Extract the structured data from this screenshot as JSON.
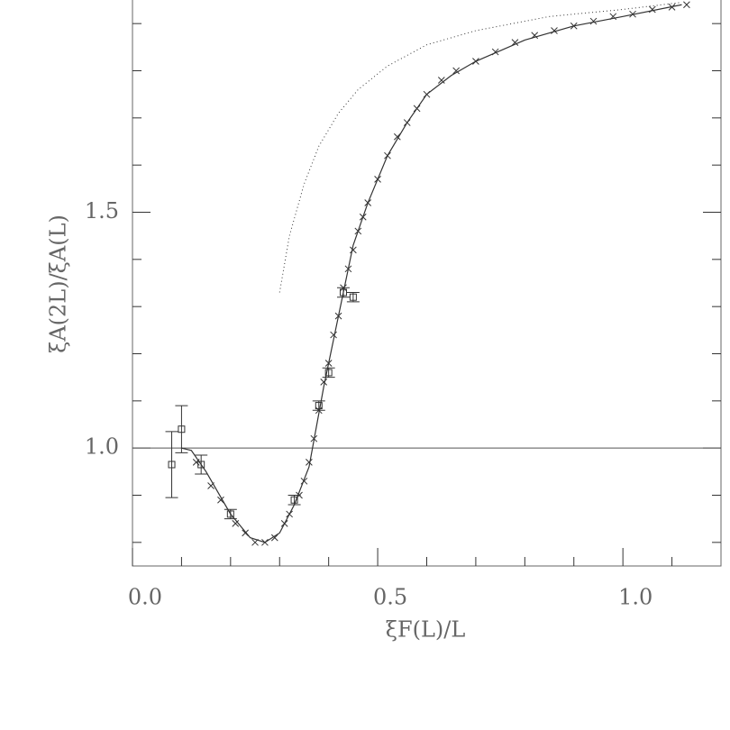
{
  "chart_data": {
    "type": "scatter",
    "xlabel": "ξF(L)/L",
    "ylabel": "ξA(2L)/ξA(L)",
    "xlim": [
      0,
      1.2
    ],
    "ylim": [
      0.75,
      1.95
    ],
    "xticks": [
      {
        "value": 0,
        "label": "0.0"
      },
      {
        "value": 0.5,
        "label": "0.5"
      },
      {
        "value": 1,
        "label": "1.0"
      }
    ],
    "yticks": [
      {
        "value": 1,
        "label": "1.0"
      },
      {
        "value": 1.5,
        "label": "1.5"
      }
    ],
    "xminorticks": [
      0.1,
      0.2,
      0.3,
      0.4,
      0.6,
      0.7,
      0.8,
      0.9,
      1.1
    ],
    "yminorticks": [
      0.8,
      0.9,
      1.1,
      1.2,
      1.3,
      1.4,
      1.6,
      1.7,
      1.8,
      1.9
    ],
    "reference_line": 1,
    "color": "#333333",
    "series": [
      {
        "marker": "square",
        "x": [
          0.08,
          0.1,
          0.14,
          0.2,
          0.33,
          0.38,
          0.4,
          0.43,
          0.45
        ],
        "values": [
          0.965,
          1.04,
          0.965,
          0.86,
          0.89,
          1.09,
          1.16,
          1.33,
          1.32
        ],
        "errors": [
          0.07,
          0.05,
          0.02,
          0.01,
          0.01,
          0.01,
          0.01,
          0.01,
          0.01
        ]
      },
      {
        "marker": "cross",
        "x": [
          0.13,
          0.16,
          0.18,
          0.21,
          0.23,
          0.25,
          0.27,
          0.29,
          0.31,
          0.32,
          0.34,
          0.35,
          0.36,
          0.37,
          0.38,
          0.39,
          0.4,
          0.41,
          0.42,
          0.43,
          0.44,
          0.45,
          0.46,
          0.47,
          0.48,
          0.5,
          0.52,
          0.54,
          0.56,
          0.58,
          0.6,
          0.63,
          0.66,
          0.7,
          0.74,
          0.78,
          0.82,
          0.86,
          0.9,
          0.94,
          0.98,
          1.02,
          1.06,
          1.1,
          1.13
        ],
        "values": [
          0.97,
          0.92,
          0.89,
          0.84,
          0.82,
          0.8,
          0.8,
          0.81,
          0.84,
          0.86,
          0.9,
          0.93,
          0.97,
          1.02,
          1.08,
          1.14,
          1.18,
          1.24,
          1.28,
          1.34,
          1.38,
          1.42,
          1.46,
          1.49,
          1.52,
          1.57,
          1.62,
          1.66,
          1.69,
          1.72,
          1.75,
          1.78,
          1.8,
          1.82,
          1.84,
          1.86,
          1.875,
          1.885,
          1.895,
          1.905,
          1.915,
          1.92,
          1.93,
          1.935,
          1.94
        ]
      },
      {
        "marker": "solid-line",
        "x": [
          0.1,
          0.12,
          0.15,
          0.2,
          0.24,
          0.27,
          0.3,
          0.33,
          0.36,
          0.39,
          0.42,
          0.45,
          0.48,
          0.52,
          0.56,
          0.6,
          0.65,
          0.7,
          0.8,
          0.9,
          1.0,
          1.12
        ],
        "values": [
          1.0,
          0.995,
          0.95,
          0.86,
          0.81,
          0.8,
          0.82,
          0.88,
          0.96,
          1.13,
          1.28,
          1.43,
          1.52,
          1.62,
          1.69,
          1.75,
          1.79,
          1.82,
          1.865,
          1.895,
          1.915,
          1.94
        ]
      },
      {
        "marker": "dotted-line",
        "x": [
          0.3,
          0.32,
          0.35,
          0.38,
          0.42,
          0.46,
          0.52,
          0.6,
          0.7,
          0.85,
          1.0,
          1.12
        ],
        "values": [
          1.33,
          1.45,
          1.56,
          1.64,
          1.71,
          1.76,
          1.81,
          1.855,
          1.885,
          1.915,
          1.93,
          1.945
        ]
      }
    ]
  }
}
